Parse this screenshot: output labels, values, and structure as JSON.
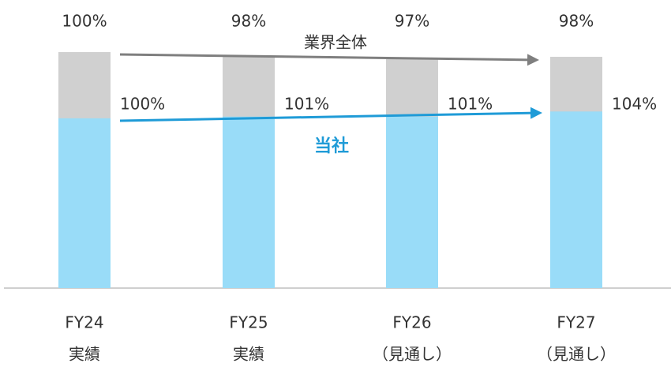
{
  "chart_data": {
    "type": "bar",
    "categories": [
      "FY24",
      "FY25",
      "FY26",
      "FY27"
    ],
    "category_notes": [
      "実績",
      "実績",
      "（見通し）",
      "（見通し）"
    ],
    "series": [
      {
        "name": "業界全体",
        "color": "#d0d0d0",
        "values": [
          100,
          98,
          97,
          98
        ],
        "value_labels": [
          "100%",
          "98%",
          "97%",
          "98%"
        ]
      },
      {
        "name": "当社",
        "color": "#99dcf8",
        "axis": "y2",
        "values": [
          100,
          101,
          101,
          104
        ],
        "value_labels": [
          "100%",
          "101%",
          "101%",
          "104%"
        ]
      }
    ],
    "ylim": [
      0,
      100
    ],
    "y2lim": [
      0,
      139
    ]
  }
}
